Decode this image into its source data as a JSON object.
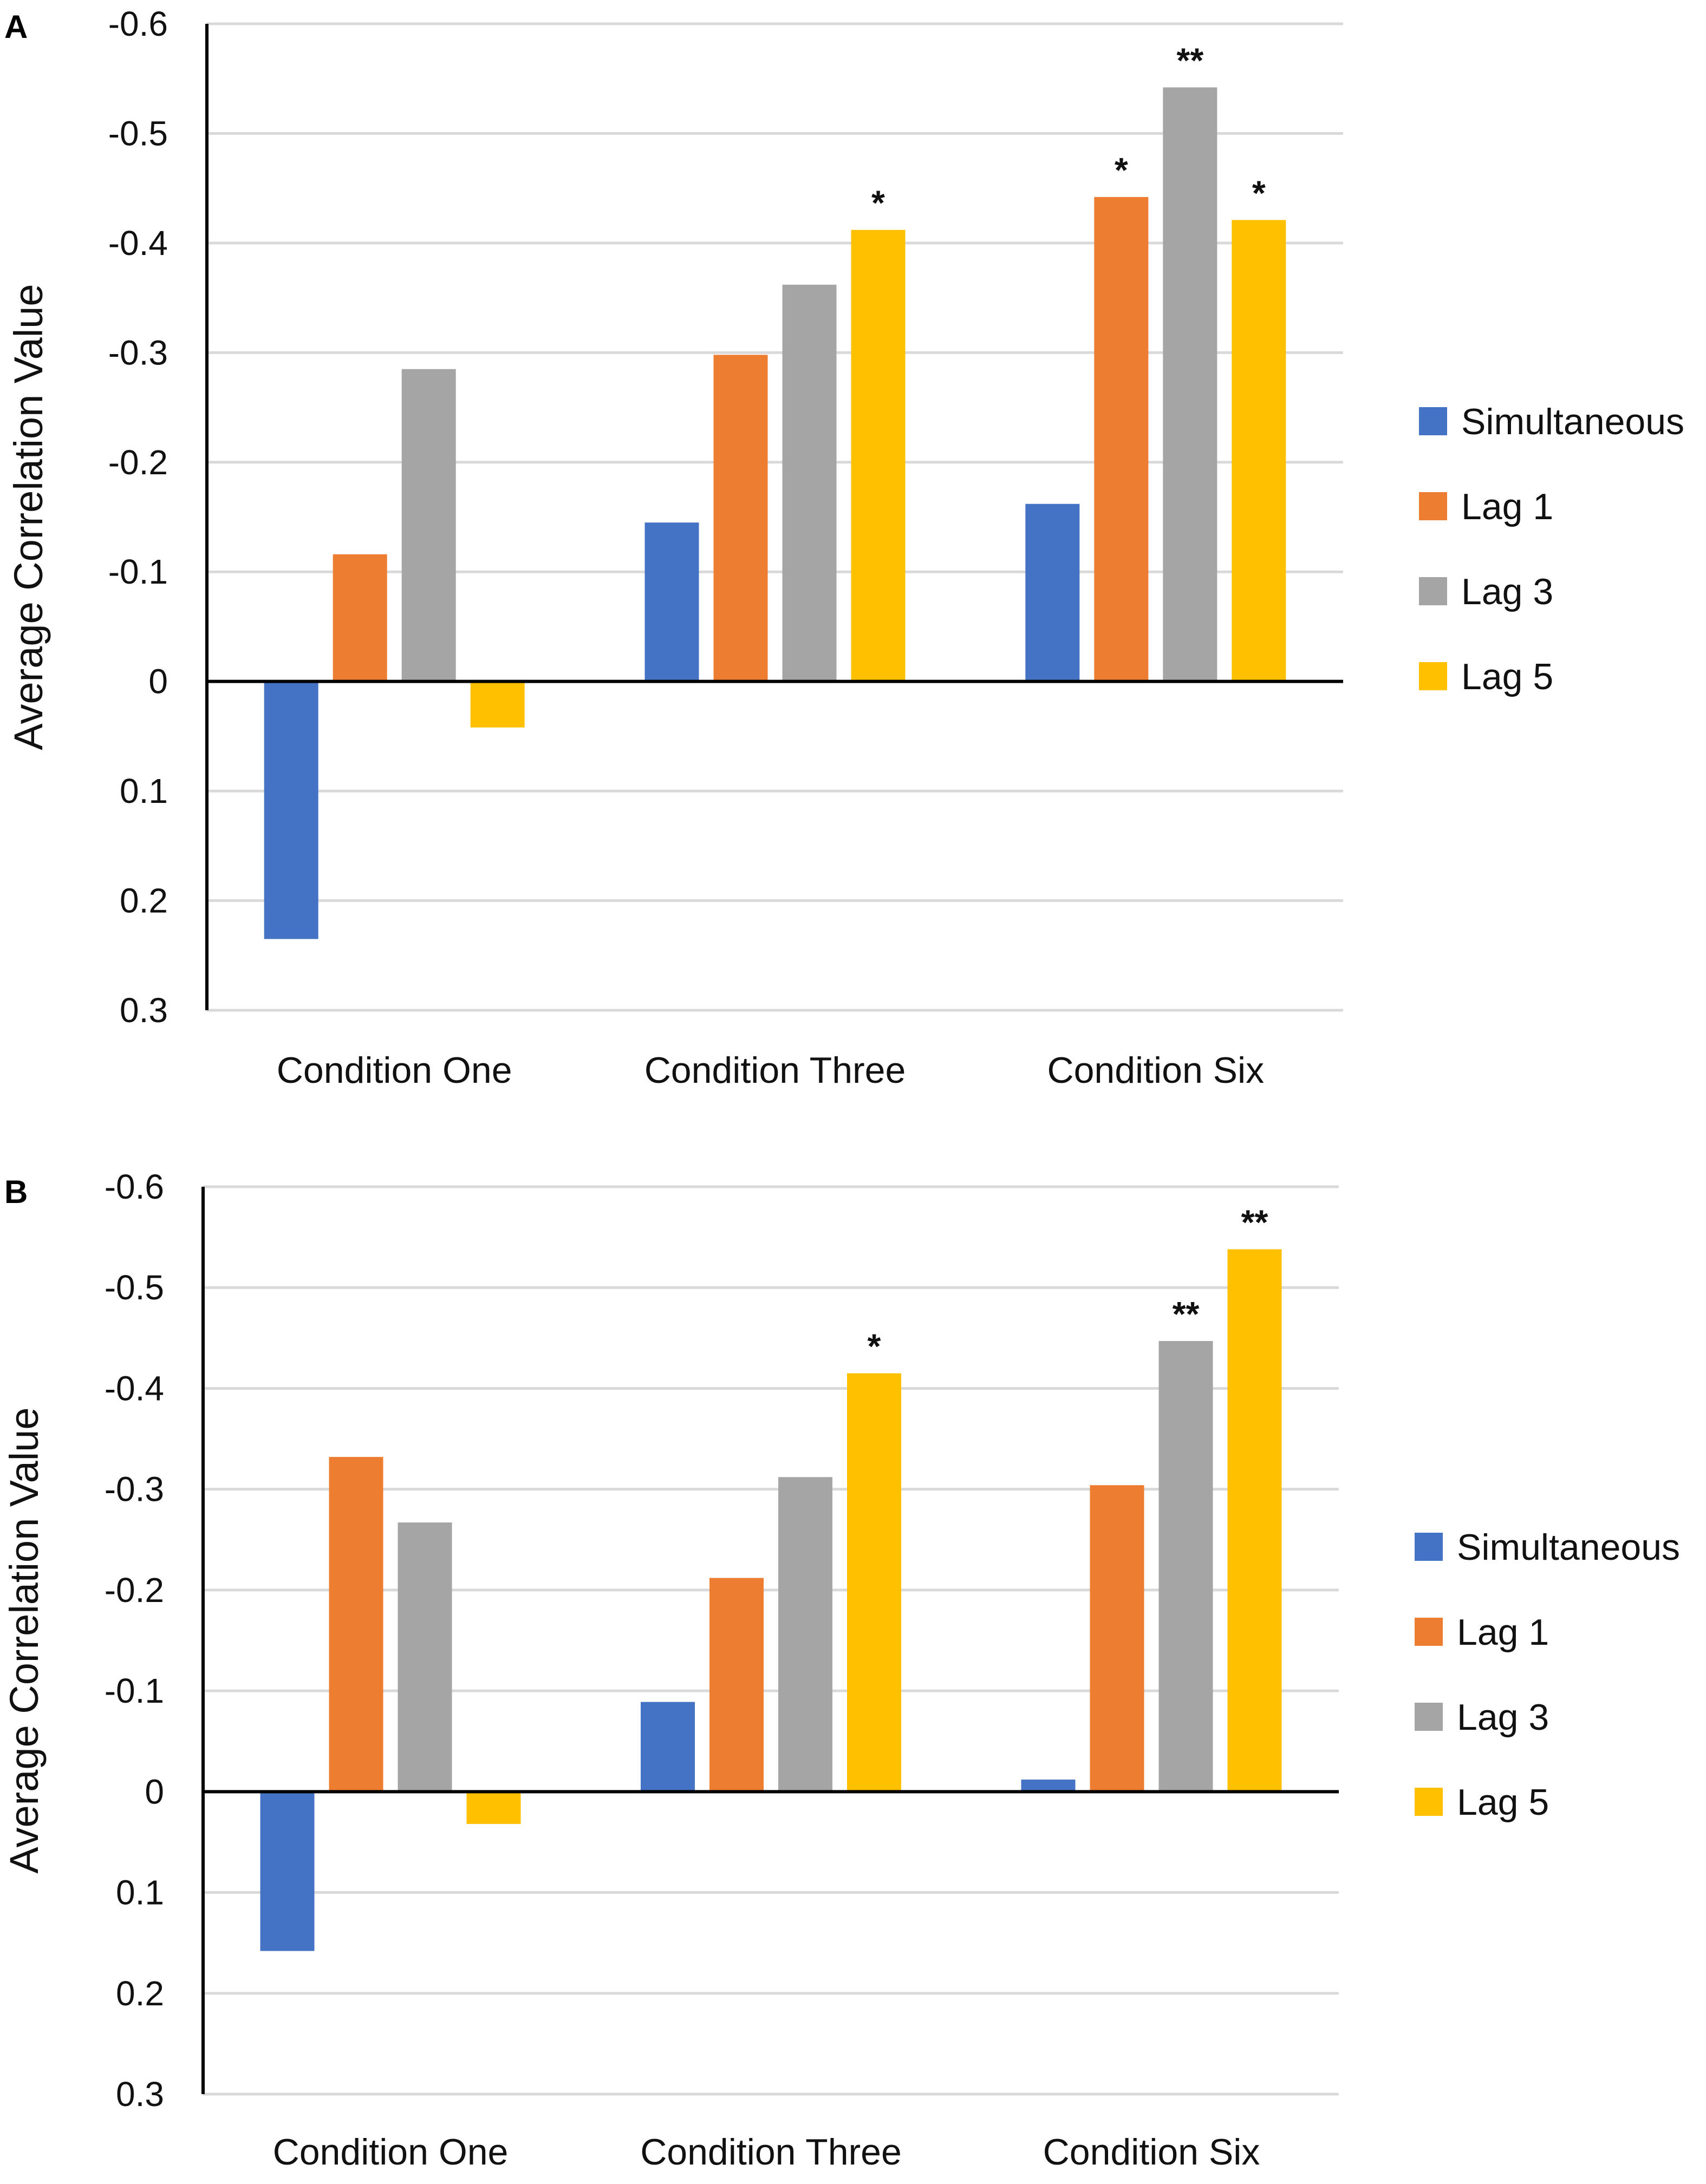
{
  "chart_data": [
    {
      "panel": "A",
      "type": "bar",
      "ylabel": "Average Correlation Value",
      "yaxis_inverted": true,
      "ylim": [
        -0.6,
        0.3
      ],
      "yticks": [
        -0.6,
        -0.5,
        -0.4,
        -0.3,
        -0.2,
        -0.1,
        0,
        0.1,
        0.2,
        0.3
      ],
      "ytick_labels": [
        "-0.6",
        "-0.5",
        "-0.4",
        "-0.3",
        "-0.2",
        "-0.1",
        "0",
        "0.1",
        "0.2",
        "0.3"
      ],
      "categories": [
        "Condition One",
        "Condition Three",
        "Condition Six"
      ],
      "series": [
        {
          "name": "Simultaneous",
          "color": "#4472c4",
          "values": [
            0.235,
            -0.145,
            -0.162
          ],
          "sig": [
            "",
            "",
            ""
          ]
        },
        {
          "name": "Lag 1",
          "color": "#ed7d31",
          "values": [
            -0.116,
            -0.298,
            -0.442
          ],
          "sig": [
            "",
            "",
            "*"
          ]
        },
        {
          "name": "Lag 3",
          "color": "#a5a5a5",
          "values": [
            -0.285,
            -0.362,
            -0.542
          ],
          "sig": [
            "",
            "",
            "**"
          ]
        },
        {
          "name": "Lag 5",
          "color": "#ffc000",
          "values": [
            0.042,
            -0.412,
            -0.421
          ],
          "sig": [
            "",
            "*",
            "*"
          ]
        }
      ],
      "legend_position": "right"
    },
    {
      "panel": "B",
      "type": "bar",
      "ylabel": "Average Correlation Value",
      "yaxis_inverted": true,
      "ylim": [
        -0.6,
        0.3
      ],
      "yticks": [
        -0.6,
        -0.5,
        -0.4,
        -0.3,
        -0.2,
        -0.1,
        0,
        0.1,
        0.2,
        0.3
      ],
      "ytick_labels": [
        "-0.6",
        "-0.5",
        "-0.4",
        "-0.3",
        "-0.2",
        "-0.1",
        "0",
        "0.1",
        "0.2",
        "0.3"
      ],
      "categories": [
        "Condition One",
        "Condition Three",
        "Condition Six"
      ],
      "series": [
        {
          "name": "Simultaneous",
          "color": "#4472c4",
          "values": [
            0.158,
            -0.089,
            -0.012
          ],
          "sig": [
            "",
            "",
            ""
          ]
        },
        {
          "name": "Lag 1",
          "color": "#ed7d31",
          "values": [
            -0.332,
            -0.212,
            -0.304
          ],
          "sig": [
            "",
            "",
            ""
          ]
        },
        {
          "name": "Lag 3",
          "color": "#a5a5a5",
          "values": [
            -0.267,
            -0.312,
            -0.447
          ],
          "sig": [
            "",
            "",
            "**"
          ]
        },
        {
          "name": "Lag 5",
          "color": "#ffc000",
          "values": [
            0.032,
            -0.415,
            -0.538
          ],
          "sig": [
            "",
            "*",
            "**"
          ]
        }
      ],
      "legend_position": "right"
    }
  ]
}
